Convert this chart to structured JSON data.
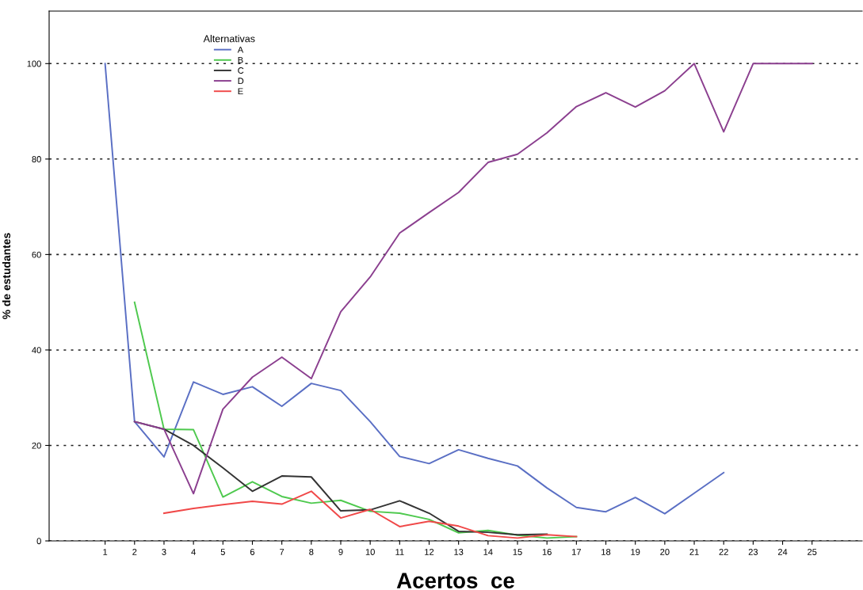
{
  "chart_data": {
    "type": "line",
    "xlabel": "Acertos  ce",
    "ylabel": "% de estudantes",
    "legend_title": "Alternativas",
    "legend": "top left",
    "categories": [
      "1",
      "2",
      "3",
      "4",
      "5",
      "6",
      "7",
      "8",
      "9",
      "10",
      "11",
      "12",
      "13",
      "14",
      "15",
      "16",
      "17",
      "18",
      "19",
      "20",
      "21",
      "22",
      "23",
      "24",
      "25"
    ],
    "ylim": [
      0,
      111
    ],
    "yticks": [
      0,
      20,
      40,
      60,
      80,
      100
    ],
    "grid": "y",
    "line_style": "solid",
    "marker": "none",
    "series": [
      {
        "name": "A",
        "color": "#5a6fc4",
        "values": [
          100,
          25,
          17.6,
          33.3,
          30.7,
          32.3,
          28.2,
          33,
          31.5,
          25,
          17.7,
          16.2,
          19.1,
          17.3,
          15.7,
          11.1,
          7,
          6.1,
          9.1,
          5.7,
          10,
          14.3,
          null,
          null,
          null
        ]
      },
      {
        "name": "B",
        "color": "#4ec94e",
        "values": [
          null,
          50,
          23.4,
          23.3,
          9.2,
          12.4,
          9.3,
          7.9,
          8.5,
          6.2,
          5.8,
          4.5,
          1.7,
          2.2,
          1.2,
          0.6,
          0.9,
          null,
          null,
          null,
          null,
          null,
          null,
          null,
          null
        ]
      },
      {
        "name": "C",
        "color": "#333333",
        "values": [
          null,
          25,
          23.4,
          20,
          15.3,
          10.4,
          13.6,
          13.4,
          6.3,
          6.5,
          8.4,
          5.8,
          2,
          1.8,
          1.3,
          1.4,
          null,
          null,
          null,
          null,
          null,
          null,
          null,
          null,
          null
        ]
      },
      {
        "name": "D",
        "color": "#8b3f8f",
        "values": [
          null,
          25,
          23.4,
          9.9,
          27.6,
          34.3,
          38.5,
          34,
          48,
          55.3,
          64.5,
          68.8,
          73,
          79.3,
          81,
          85.5,
          91,
          93.9,
          90.9,
          94.3,
          100,
          85.7,
          100,
          100,
          100
        ]
      },
      {
        "name": "E",
        "color": "#f04848",
        "values": [
          null,
          null,
          5.8,
          6.8,
          7.6,
          8.3,
          7.7,
          10.4,
          4.8,
          6.6,
          3,
          4.1,
          3.1,
          1.1,
          0.6,
          1.3,
          0.9,
          null,
          null,
          null,
          null,
          null,
          null,
          null,
          null
        ]
      }
    ]
  }
}
